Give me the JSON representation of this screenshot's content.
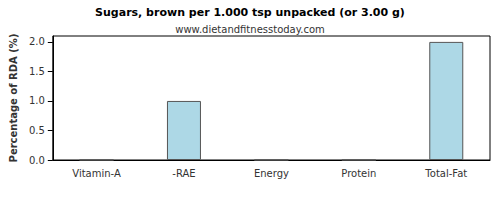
{
  "chart_data": {
    "type": "bar",
    "title": "Sugars, brown per 1.000 tsp unpacked (or 3.00 g)",
    "subtitle": "www.dietandfitnesstoday.com",
    "y_label": "Percentage of RDA (%)",
    "categories": [
      "Vitamin-A",
      "-RAE",
      "Energy",
      "Protein",
      "Total-Fat"
    ],
    "values": [
      0,
      1,
      0,
      0,
      2
    ],
    "color": "#add8e6",
    "ylim": [
      0,
      2.1
    ],
    "yticks": [
      {
        "value": 0,
        "label": "0.0"
      },
      {
        "value": 0.5,
        "label": "0.5"
      },
      {
        "value": 1,
        "label": "1.0"
      },
      {
        "value": 1.5,
        "label": "1.5"
      },
      {
        "value": 2,
        "label": "2.0"
      }
    ],
    "grid": false
  }
}
